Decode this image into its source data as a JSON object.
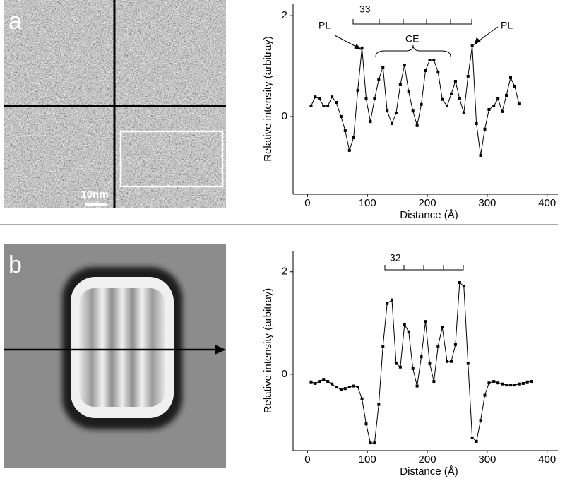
{
  "panels": [
    {
      "label": "a",
      "scale_bar": "10nm"
    },
    {
      "label": "b"
    }
  ],
  "chart_data": [
    {
      "type": "line",
      "xlabel": "Distance (Å)",
      "ylabel": "Relative intensity (arbitray)",
      "color": "#000000",
      "annotations": [
        "PL",
        "PL",
        "CE",
        "33"
      ],
      "xlim": [
        -24,
        418
      ],
      "ylim": [
        -1.54,
        2.24
      ],
      "xticks": [
        0,
        100,
        200,
        300,
        400
      ],
      "yticks": [
        0,
        2
      ],
      "x": [
        6,
        13,
        20,
        27,
        34,
        41,
        48,
        56,
        63,
        70,
        77,
        84,
        91,
        98,
        105,
        112,
        119,
        126,
        133,
        141,
        148,
        155,
        162,
        169,
        176,
        183,
        190,
        197,
        204,
        211,
        218,
        225,
        233,
        240,
        247,
        254,
        261,
        268,
        275,
        282,
        289,
        296,
        303,
        311,
        318,
        325,
        332,
        339,
        346,
        353
      ],
      "values": [
        0.21,
        0.39,
        0.35,
        0.21,
        0.21,
        0.39,
        0.28,
        0,
        -0.28,
        -0.67,
        -0.42,
        0.52,
        1.36,
        0.35,
        -0.1,
        0.35,
        0.73,
        0.98,
        0.11,
        -0.14,
        0.07,
        0.63,
        1.02,
        0.49,
        0.11,
        -0.18,
        0.24,
        0.91,
        1.12,
        1.12,
        0.88,
        0.34,
        0.21,
        0.45,
        0.7,
        0.35,
        0.07,
        0.8,
        1.4,
        -0.14,
        -0.77,
        -0.25,
        0.14,
        0.21,
        0.35,
        0.1,
        0.42,
        0.77,
        0.6,
        0.25
      ]
    },
    {
      "type": "line",
      "xlabel": "Distance (Å)",
      "ylabel": "Relative intensity (arbitray)",
      "color": "#000000",
      "annotations": [
        "32"
      ],
      "xlim": [
        -24,
        418
      ],
      "ylim": [
        -1.49,
        2.41
      ],
      "xticks": [
        0,
        100,
        200,
        300,
        400
      ],
      "yticks": [
        0,
        2
      ],
      "x": [
        6,
        13,
        20,
        27,
        34,
        41,
        48,
        56,
        63,
        70,
        77,
        84,
        91,
        98,
        105,
        112,
        119,
        126,
        133,
        141,
        148,
        155,
        162,
        169,
        176,
        183,
        190,
        197,
        204,
        211,
        218,
        225,
        233,
        240,
        247,
        254,
        261,
        268,
        275,
        282,
        289,
        296,
        303,
        311,
        318,
        325,
        332,
        339,
        346,
        353,
        360,
        367,
        374
      ],
      "values": [
        -0.15,
        -0.18,
        -0.14,
        -0.1,
        -0.14,
        -0.19,
        -0.25,
        -0.3,
        -0.28,
        -0.25,
        -0.23,
        -0.25,
        -0.48,
        -0.97,
        -1.34,
        -1.34,
        -0.59,
        0.55,
        1.38,
        1.45,
        0.21,
        0.14,
        0.97,
        0.83,
        0.11,
        -0.23,
        0.34,
        1.03,
        0.21,
        -0.14,
        0.55,
        0.92,
        0.25,
        0.25,
        0.58,
        1.79,
        1.72,
        0.21,
        -1.24,
        -1.31,
        -0.9,
        -0.41,
        -0.17,
        -0.14,
        -0.17,
        -0.19,
        -0.21,
        -0.21,
        -0.21,
        -0.19,
        -0.18,
        -0.15,
        -0.14
      ]
    }
  ]
}
